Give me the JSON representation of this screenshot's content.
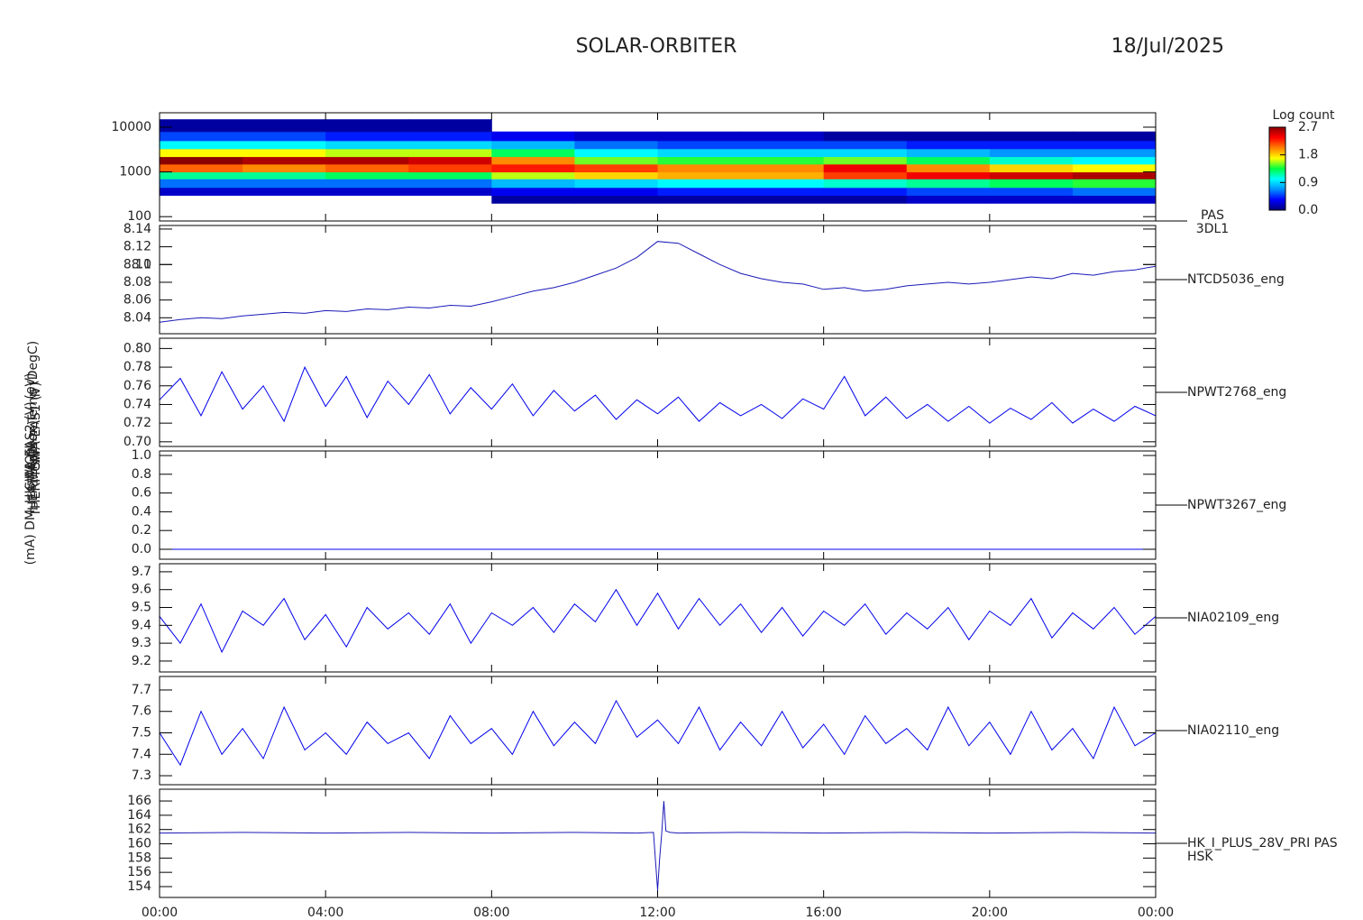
{
  "header": {
    "title": "SOLAR-ORBITER",
    "date": "18/Jul/2025"
  },
  "chart_data": [
    {
      "type": "heatmap",
      "ylabel": "(eV)",
      "right_label": [
        "PAS",
        "3DL1"
      ],
      "ylog": true,
      "ylim": [
        80,
        21000
      ],
      "yticks": [
        100,
        1000,
        10000
      ],
      "xlim": [
        0,
        24
      ],
      "x_bins": [
        0,
        2,
        4,
        6,
        8,
        10,
        12,
        14,
        16,
        18,
        20,
        22,
        24
      ],
      "y_bins": [
        200,
        300,
        450,
        700,
        1000,
        1500,
        2200,
        3300,
        5000,
        8000,
        15000
      ],
      "values": [
        [
          null,
          0.2,
          0.6,
          1.2,
          2.1,
          2.7,
          1.7,
          1.0,
          0.5,
          0.1
        ],
        [
          null,
          0.2,
          0.6,
          1.2,
          2.0,
          2.6,
          1.7,
          1.0,
          0.5,
          0.1
        ],
        [
          null,
          0.2,
          0.6,
          1.3,
          2.1,
          2.6,
          1.6,
          0.9,
          0.4,
          0.1
        ],
        [
          null,
          0.2,
          0.6,
          1.3,
          2.2,
          2.5,
          1.6,
          0.9,
          0.4,
          0.1
        ],
        [
          0.1,
          0.3,
          0.8,
          1.6,
          2.3,
          2.0,
          1.3,
          0.8,
          0.3,
          null
        ],
        [
          0.1,
          0.3,
          0.9,
          1.8,
          2.2,
          1.5,
          1.0,
          0.6,
          0.2,
          null
        ],
        [
          0.1,
          0.4,
          1.0,
          1.9,
          2.0,
          1.4,
          0.9,
          0.5,
          0.2,
          null
        ],
        [
          0.1,
          0.4,
          1.0,
          1.9,
          2.0,
          1.4,
          0.9,
          0.5,
          0.2,
          null
        ],
        [
          0.1,
          0.4,
          1.1,
          2.2,
          2.4,
          1.5,
          0.9,
          0.5,
          0.1,
          null
        ],
        [
          0.2,
          0.5,
          1.2,
          2.4,
          2.0,
          1.3,
          0.8,
          0.4,
          0.1,
          null
        ],
        [
          0.2,
          0.5,
          1.3,
          2.5,
          1.8,
          1.1,
          0.7,
          0.4,
          0.1,
          null
        ],
        [
          0.2,
          0.6,
          1.4,
          2.6,
          1.7,
          1.0,
          0.7,
          0.4,
          0.1,
          null
        ]
      ],
      "colorbar_label": "Log count",
      "zlim": [
        0,
        2.7
      ],
      "zticks": [
        {
          "value": 0,
          "label": "0.0"
        },
        0.9,
        1.8,
        2.7
      ],
      "colormap": [
        "#00007a",
        "#0000ff",
        "#0090ff",
        "#00ffff",
        "#00ff40",
        "#ffff00",
        "#ff8000",
        "#ff0000",
        "#8b0000"
      ]
    },
    {
      "type": "line",
      "ylabel": "Approx Temp (DegC)",
      "right_label": [
        "NTCD5036_eng"
      ],
      "color": "#1a1ab8",
      "ylim": [
        8.022,
        8.144
      ],
      "yticks": [
        8.04,
        8.06,
        8.08,
        8.1,
        {
          "value": 8.1,
          "label": "8.10"
        },
        8.12,
        8.14
      ],
      "xlim": [
        0,
        24
      ],
      "x": [
        0,
        0.5,
        1,
        1.5,
        2,
        2.5,
        3,
        3.5,
        4,
        4.5,
        5,
        5.5,
        6,
        6.5,
        7,
        7.5,
        8,
        8.5,
        9,
        9.5,
        10,
        10.5,
        11,
        11.5,
        12,
        12.5,
        13,
        13.5,
        14,
        14.5,
        15,
        15.5,
        16,
        16.5,
        17,
        17.5,
        18,
        18.5,
        19,
        19.5,
        20,
        20.5,
        21,
        21.5,
        22,
        22.5,
        23,
        23.5,
        24
      ],
      "values": [
        8.035,
        8.038,
        8.04,
        8.039,
        8.042,
        8.044,
        8.046,
        8.045,
        8.048,
        8.047,
        8.05,
        8.049,
        8.052,
        8.051,
        8.054,
        8.053,
        8.058,
        8.064,
        8.07,
        8.074,
        8.08,
        8.088,
        8.096,
        8.108,
        8.126,
        8.124,
        8.112,
        8.1,
        8.09,
        8.084,
        8.08,
        8.078,
        8.072,
        8.074,
        8.07,
        8.072,
        8.076,
        8.078,
        8.08,
        8.078,
        8.08,
        8.083,
        8.086,
        8.084,
        8.09,
        8.088,
        8.092,
        8.094,
        8.098
      ]
    },
    {
      "type": "line",
      "ylabel": "SWA-EAS1 (V)",
      "right_label": [
        "NPWT2768_eng"
      ],
      "color": "#0000ee",
      "ylim": [
        0.695,
        0.811
      ],
      "yticks": [
        {
          "value": 0.7,
          "label": "0.70"
        },
        0.72,
        0.74,
        0.76,
        0.78,
        {
          "value": 0.8,
          "label": "0.80"
        }
      ],
      "xlim": [
        0,
        24
      ],
      "x": [
        0,
        0.5,
        1,
        1.5,
        2,
        2.5,
        3,
        3.5,
        4,
        4.5,
        5,
        5.5,
        6,
        6.5,
        7,
        7.5,
        8,
        8.5,
        9,
        9.5,
        10,
        10.5,
        11,
        11.5,
        12,
        12.5,
        13,
        13.5,
        14,
        14.5,
        15,
        15.5,
        16,
        16.5,
        17,
        17.5,
        18,
        18.5,
        19,
        19.5,
        20,
        20.5,
        21,
        21.5,
        22,
        22.5,
        23,
        23.5,
        24
      ],
      "values": [
        0.745,
        0.768,
        0.728,
        0.775,
        0.735,
        0.76,
        0.722,
        0.78,
        0.738,
        0.77,
        0.726,
        0.765,
        0.74,
        0.772,
        0.73,
        0.758,
        0.735,
        0.762,
        0.728,
        0.755,
        0.733,
        0.75,
        0.724,
        0.745,
        0.73,
        0.748,
        0.722,
        0.742,
        0.728,
        0.74,
        0.725,
        0.746,
        0.735,
        0.77,
        0.728,
        0.748,
        0.725,
        0.74,
        0.722,
        0.738,
        0.72,
        0.736,
        0.724,
        0.742,
        0.72,
        0.735,
        0.722,
        0.738,
        0.728
      ]
    },
    {
      "type": "line",
      "ylabel": "SWA-EAS2 (V)",
      "right_label": [
        "NPWT3267_eng"
      ],
      "color": "#0000ee",
      "ylim": [
        -0.106,
        1.048
      ],
      "yticks": [
        {
          "value": 0,
          "label": "0.0"
        },
        0.2,
        0.4,
        0.6,
        0.8,
        {
          "value": 1,
          "label": "1.0"
        }
      ],
      "xlim": [
        0,
        24
      ],
      "x": [
        0,
        0.5,
        1,
        1.5,
        2,
        2.5,
        3,
        3.5,
        4,
        4.5,
        5,
        5.5,
        6,
        6.5,
        7,
        7.5,
        8,
        8.5,
        9,
        9.5,
        10,
        10.5,
        11,
        11.5,
        12,
        12.5,
        13,
        13.5,
        14,
        14.5,
        15,
        15.5,
        16,
        16.5,
        17,
        17.5,
        18,
        18.5,
        19,
        19.5,
        20,
        20.5,
        21,
        21.5,
        22,
        22.5,
        23,
        23.5,
        24
      ],
      "values": [
        0,
        0,
        0,
        0,
        0,
        0,
        0,
        0,
        0,
        0,
        0,
        0,
        0,
        0,
        0,
        0,
        0,
        0,
        0,
        0,
        0,
        0,
        0,
        0,
        0,
        0,
        0,
        0,
        0,
        0,
        0,
        0,
        0,
        0,
        0,
        0,
        0,
        0,
        0,
        0,
        0,
        0,
        0,
        0,
        0,
        0,
        0,
        0,
        0
      ]
    },
    {
      "type": "line",
      "ylabel": "HEATER (Mon)",
      "right_label": [
        "NIA02109_eng"
      ],
      "color": "#0000ee",
      "ylim": [
        9.139,
        9.745
      ],
      "yticks": [
        9.2,
        9.3,
        9.4,
        9.5,
        9.6,
        9.7
      ],
      "xlim": [
        0,
        24
      ],
      "x": [
        0,
        0.5,
        1,
        1.5,
        2,
        2.5,
        3,
        3.5,
        4,
        4.5,
        5,
        5.5,
        6,
        6.5,
        7,
        7.5,
        8,
        8.5,
        9,
        9.5,
        10,
        10.5,
        11,
        11.5,
        12,
        12.5,
        13,
        13.5,
        14,
        14.5,
        15,
        15.5,
        16,
        16.5,
        17,
        17.5,
        18,
        18.5,
        19,
        19.5,
        20,
        20.5,
        21,
        21.5,
        22,
        22.5,
        23,
        23.5,
        24
      ],
      "values": [
        9.45,
        9.3,
        9.52,
        9.25,
        9.48,
        9.4,
        9.55,
        9.32,
        9.46,
        9.28,
        9.5,
        9.38,
        9.47,
        9.35,
        9.52,
        9.3,
        9.47,
        9.4,
        9.5,
        9.36,
        9.52,
        9.42,
        9.6,
        9.4,
        9.58,
        9.38,
        9.55,
        9.4,
        9.52,
        9.36,
        9.5,
        9.34,
        9.48,
        9.4,
        9.52,
        9.35,
        9.47,
        9.38,
        9.5,
        9.32,
        9.48,
        9.4,
        9.55,
        9.33,
        9.47,
        9.38,
        9.5,
        9.35,
        9.45
      ]
    },
    {
      "type": "line",
      "ylabel": "THERMCA",
      "right_label": [
        "NIA02110_eng"
      ],
      "color": "#0000ee",
      "ylim": [
        7.258,
        7.763
      ],
      "yticks": [
        7.3,
        7.4,
        7.5,
        7.6,
        7.7
      ],
      "xlim": [
        0,
        24
      ],
      "x": [
        0,
        0.5,
        1,
        1.5,
        2,
        2.5,
        3,
        3.5,
        4,
        4.5,
        5,
        5.5,
        6,
        6.5,
        7,
        7.5,
        8,
        8.5,
        9,
        9.5,
        10,
        10.5,
        11,
        11.5,
        12,
        12.5,
        13,
        13.5,
        14,
        14.5,
        15,
        15.5,
        16,
        16.5,
        17,
        17.5,
        18,
        18.5,
        19,
        19.5,
        20,
        20.5,
        21,
        21.5,
        22,
        22.5,
        23,
        23.5,
        24
      ],
      "values": [
        7.5,
        7.35,
        7.6,
        7.4,
        7.52,
        7.38,
        7.62,
        7.42,
        7.5,
        7.4,
        7.55,
        7.45,
        7.5,
        7.38,
        7.58,
        7.45,
        7.52,
        7.4,
        7.6,
        7.44,
        7.55,
        7.45,
        7.65,
        7.48,
        7.56,
        7.45,
        7.62,
        7.42,
        7.55,
        7.44,
        7.6,
        7.43,
        7.54,
        7.4,
        7.58,
        7.45,
        7.52,
        7.42,
        7.62,
        7.44,
        7.55,
        7.4,
        7.6,
        7.42,
        7.52,
        7.38,
        7.62,
        7.44,
        7.5
      ]
    },
    {
      "type": "line",
      "ylabel": "(mA) DM_HK_IMON",
      "right_label": [
        "HK_I_PLUS_28V_PRI PAS",
        "HSK"
      ],
      "color": "#1a1ab8",
      "ylim": [
        152.48,
        167.65
      ],
      "yticks": [
        154,
        156,
        158,
        160,
        162,
        164,
        166
      ],
      "xlim": [
        0,
        24
      ],
      "xticks": [
        {
          "value": 0,
          "label": "00:00"
        },
        {
          "value": 4,
          "label": "04:00"
        },
        {
          "value": 8,
          "label": "08:00"
        },
        {
          "value": 12,
          "label": "12:00"
        },
        {
          "value": 16,
          "label": "16:00"
        },
        {
          "value": 20,
          "label": "20:00"
        },
        {
          "value": 24,
          "label": "00:00"
        }
      ],
      "x": [
        0,
        2,
        4,
        6,
        8,
        10,
        11.5,
        11.9,
        12,
        12.05,
        12.1,
        12.15,
        12.2,
        12.3,
        12.5,
        14,
        16,
        18,
        20,
        22,
        24
      ],
      "values": [
        161.5,
        161.6,
        161.5,
        161.6,
        161.5,
        161.6,
        161.5,
        161.6,
        153.5,
        158,
        161.5,
        166,
        161.8,
        161.6,
        161.5,
        161.6,
        161.5,
        161.6,
        161.5,
        161.6,
        161.5
      ]
    }
  ]
}
